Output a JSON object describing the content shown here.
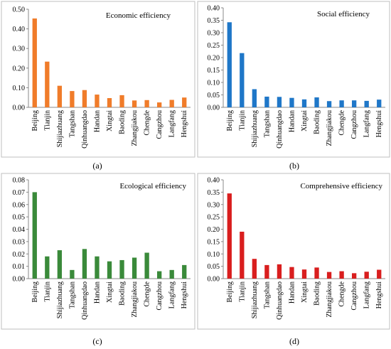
{
  "chart_data": [
    {
      "type": "bar",
      "panel": "(a)",
      "title": "Economic efficiency",
      "color": "#f07c2a",
      "ylim": [
        0,
        0.5
      ],
      "yticks": [
        "0.00",
        "0.10",
        "0.20",
        "0.30",
        "0.40",
        "0.50"
      ],
      "categories": [
        "Beijing",
        "Tianjin",
        "Shijiazhuang",
        "Tangshan",
        "Qinhuangdao",
        "Handan",
        "Xingtai",
        "Baoding",
        "Zhangjiakou",
        "Chengde",
        "Cangzhou",
        "Langfang",
        "Hengshui"
      ],
      "values": [
        0.453,
        0.233,
        0.11,
        0.083,
        0.088,
        0.065,
        0.047,
        0.062,
        0.035,
        0.037,
        0.025,
        0.038,
        0.05
      ]
    },
    {
      "type": "bar",
      "panel": "(b)",
      "title": "Social efficiency",
      "color": "#1f77c8",
      "ylim": [
        0,
        0.4
      ],
      "yticks": [
        "0.00",
        "0.05",
        "0.10",
        "0.15",
        "0.20",
        "0.25",
        "0.30",
        "0.35",
        "0.40"
      ],
      "categories": [
        "Beijing",
        "Tianjin",
        "Shijiazhuang",
        "Tangshan",
        "Qinhuangdao",
        "Handan",
        "Xingtai",
        "Baoding",
        "Zhangjiakou",
        "Chengde",
        "Cangzhou",
        "Langfang",
        "Hengshui"
      ],
      "values": [
        0.342,
        0.218,
        0.073,
        0.043,
        0.042,
        0.038,
        0.032,
        0.04,
        0.025,
        0.028,
        0.028,
        0.026,
        0.031
      ]
    },
    {
      "type": "bar",
      "panel": "(c)",
      "title": "Ecological efficiency",
      "color": "#3a8a3a",
      "ylim": [
        0,
        0.08
      ],
      "yticks": [
        "0.00",
        "0.01",
        "0.02",
        "0.03",
        "0.04",
        "0.05",
        "0.06",
        "0.07",
        "0.08"
      ],
      "categories": [
        "Beijing",
        "Tianjin",
        "Shijiazhuang",
        "Tangshan",
        "Qinhuangdao",
        "Handan",
        "Xingtai",
        "Baoding",
        "Zhangjiakou",
        "Chengde",
        "Cangzhou",
        "Langfang",
        "Hengshui"
      ],
      "values": [
        0.07,
        0.018,
        0.023,
        0.007,
        0.024,
        0.018,
        0.014,
        0.015,
        0.017,
        0.021,
        0.006,
        0.007,
        0.011
      ]
    },
    {
      "type": "bar",
      "panel": "(d)",
      "title": "Comprehensive efficiency",
      "color": "#d91e1e",
      "ylim": [
        0,
        0.4
      ],
      "yticks": [
        "0.00",
        "0.05",
        "0.10",
        "0.15",
        "0.20",
        "0.25",
        "0.30",
        "0.35",
        "0.40"
      ],
      "categories": [
        "Beijing",
        "Tianjin",
        "Shijiazhuang",
        "Tangshan",
        "Qinhuangdao",
        "Handan",
        "Xingtai",
        "Baoding",
        "Zhangjiakou",
        "Chengde",
        "Cangzhou",
        "Langfang",
        "Hengshui"
      ],
      "values": [
        0.345,
        0.19,
        0.08,
        0.055,
        0.058,
        0.047,
        0.037,
        0.045,
        0.027,
        0.03,
        0.022,
        0.028,
        0.036
      ]
    }
  ]
}
